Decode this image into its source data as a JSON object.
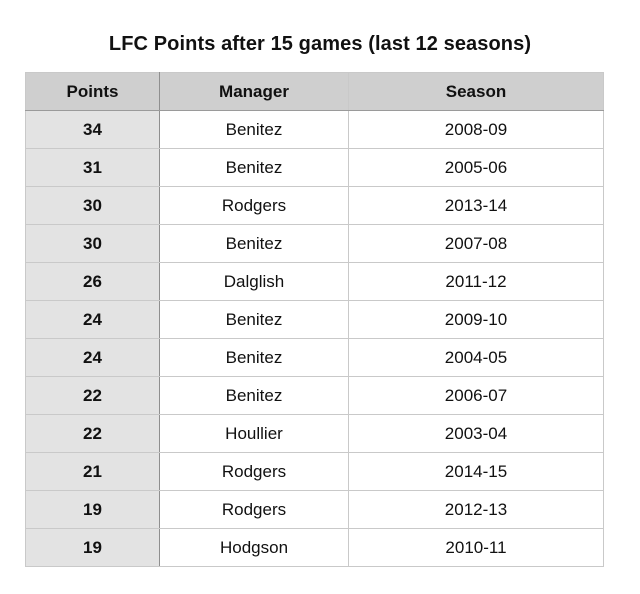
{
  "chart_data": {
    "type": "table",
    "title": "LFC Points after 15 games (last 12 seasons)",
    "columns": [
      "Points",
      "Manager",
      "Season"
    ],
    "rows": [
      {
        "points": "34",
        "manager": "Benitez",
        "season": "2008-09"
      },
      {
        "points": "31",
        "manager": "Benitez",
        "season": "2005-06"
      },
      {
        "points": "30",
        "manager": "Rodgers",
        "season": "2013-14"
      },
      {
        "points": "30",
        "manager": "Benitez",
        "season": "2007-08"
      },
      {
        "points": "26",
        "manager": "Dalglish",
        "season": "2011-12"
      },
      {
        "points": "24",
        "manager": "Benitez",
        "season": "2009-10"
      },
      {
        "points": "24",
        "manager": "Benitez",
        "season": "2004-05"
      },
      {
        "points": "22",
        "manager": "Benitez",
        "season": "2006-07"
      },
      {
        "points": "22",
        "manager": "Houllier",
        "season": "2003-04"
      },
      {
        "points": "21",
        "manager": "Rodgers",
        "season": "2014-15"
      },
      {
        "points": "19",
        "manager": "Rodgers",
        "season": "2012-13"
      },
      {
        "points": "19",
        "manager": "Hodgson",
        "season": "2010-11"
      }
    ],
    "header_color": "#cfcfcf",
    "points_column_color": "#e3e3e3"
  }
}
